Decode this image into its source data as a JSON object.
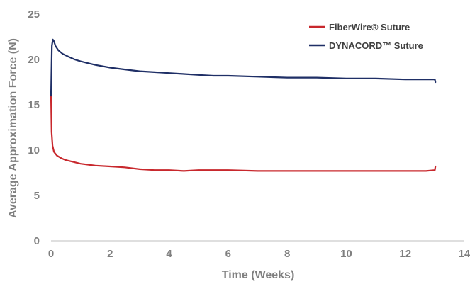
{
  "chart_data": {
    "type": "line",
    "title": "",
    "xlabel": "Time (Weeks)",
    "ylabel": "Average Approximation Force (N)",
    "xlim": [
      0,
      14
    ],
    "ylim": [
      0,
      25
    ],
    "xticks": [
      "0",
      "2",
      "4",
      "6",
      "8",
      "10",
      "12",
      "14"
    ],
    "yticks": [
      "0",
      "5",
      "10",
      "15",
      "20",
      "25"
    ],
    "grid": false,
    "legend_position": "top-right",
    "series": [
      {
        "name": "FiberWire® Suture",
        "color": "#c8282d",
        "x": [
          0,
          0.02,
          0.05,
          0.1,
          0.2,
          0.35,
          0.5,
          0.75,
          1,
          1.5,
          2,
          2.5,
          3,
          3.5,
          4,
          4.5,
          5,
          6,
          7,
          8,
          9,
          10,
          11,
          12,
          12.7,
          13,
          13.02
        ],
        "y": [
          16,
          12,
          10.5,
          9.8,
          9.4,
          9.1,
          8.9,
          8.7,
          8.5,
          8.3,
          8.2,
          8.1,
          7.9,
          7.8,
          7.8,
          7.7,
          7.8,
          7.8,
          7.7,
          7.7,
          7.7,
          7.7,
          7.7,
          7.7,
          7.7,
          7.8,
          8.2
        ]
      },
      {
        "name": "DYNACORD™ Suture",
        "color": "#1f2f66",
        "x": [
          0,
          0.03,
          0.06,
          0.1,
          0.15,
          0.25,
          0.4,
          0.6,
          0.8,
          1,
          1.5,
          2,
          2.5,
          3,
          3.5,
          4,
          4.5,
          5,
          5.5,
          6,
          7,
          8,
          9,
          10,
          11,
          12,
          12.7,
          13,
          13.02
        ],
        "y": [
          16,
          21.5,
          22.2,
          22.0,
          21.5,
          21.0,
          20.6,
          20.3,
          20.0,
          19.8,
          19.4,
          19.1,
          18.9,
          18.7,
          18.6,
          18.5,
          18.4,
          18.3,
          18.2,
          18.2,
          18.1,
          18.0,
          18.0,
          17.9,
          17.9,
          17.8,
          17.8,
          17.8,
          17.5
        ]
      }
    ]
  }
}
